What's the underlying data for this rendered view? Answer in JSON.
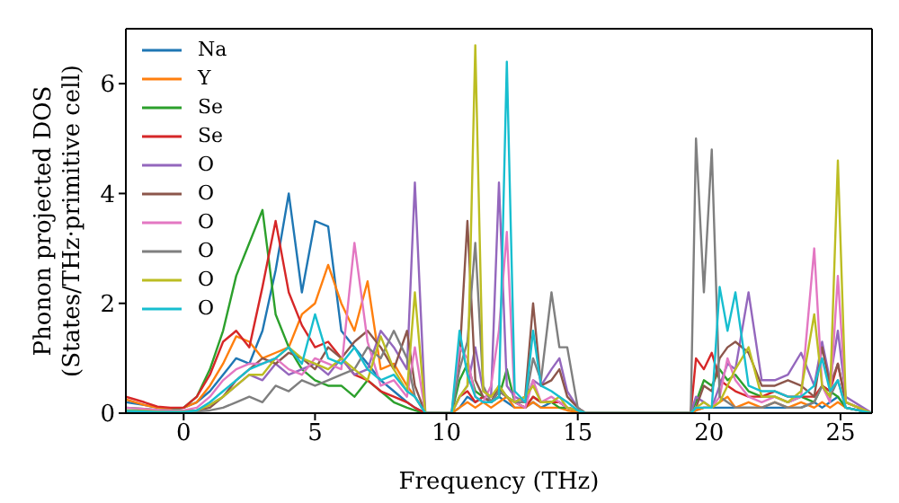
{
  "chart_data": {
    "type": "line",
    "xlabel": "Frequency (THz)",
    "ylabel": "Phonon projected DOS\n(States/THz·primitive cell)",
    "xlim": [
      -2.2,
      26.2
    ],
    "ylim": [
      0,
      7
    ],
    "xticks": [
      0,
      5,
      10,
      15,
      20,
      25
    ],
    "yticks": [
      0,
      2,
      4,
      6
    ],
    "grid": false,
    "legend": "top left",
    "marker": "none",
    "line_style": "solid",
    "x": [
      -2.2,
      -1.5,
      -1,
      -0.5,
      0,
      0.5,
      1,
      1.5,
      2,
      2.5,
      3,
      3.5,
      4,
      4.5,
      5,
      5.5,
      6,
      6.5,
      7,
      7.5,
      8,
      8.5,
      8.8,
      9.2,
      10.2,
      10.5,
      10.8,
      11.1,
      11.4,
      11.7,
      12,
      12.3,
      12.6,
      13,
      13.3,
      13.6,
      14,
      14.3,
      14.6,
      15,
      15.3,
      19.3,
      19.5,
      19.8,
      20.1,
      20.4,
      20.7,
      21,
      21.5,
      22,
      22.5,
      23,
      23.5,
      24,
      24.3,
      24.6,
      24.9,
      25.2,
      26.2
    ],
    "series": [
      {
        "name": "Na",
        "color": "#1f77b4",
        "values": [
          0.2,
          0.15,
          0.1,
          0.08,
          0.1,
          0.2,
          0.4,
          0.7,
          1.0,
          0.9,
          1.5,
          2.6,
          4.0,
          2.2,
          3.5,
          3.4,
          1.5,
          1.2,
          0.9,
          0.6,
          0.4,
          0.2,
          0.1,
          0,
          0,
          0.1,
          0.3,
          0.2,
          0.3,
          0.2,
          0.3,
          0.2,
          0.1,
          0.1,
          0.2,
          0.1,
          0.2,
          0.2,
          0.1,
          0.05,
          0,
          0,
          0.05,
          0.1,
          0.1,
          0.1,
          0.1,
          0.1,
          0.1,
          0.1,
          0.1,
          0.1,
          0.1,
          0.2,
          0.1,
          0.2,
          0.3,
          0.1,
          0
        ]
      },
      {
        "name": "Y",
        "color": "#ff7f0e",
        "values": [
          0.25,
          0.15,
          0.1,
          0.08,
          0.1,
          0.2,
          0.5,
          0.9,
          1.4,
          1.3,
          1.0,
          1.1,
          1.2,
          1.8,
          2.0,
          2.7,
          2.0,
          1.5,
          2.4,
          0.8,
          0.9,
          0.5,
          0.3,
          0,
          0,
          0.1,
          0.2,
          0.1,
          0.2,
          0.1,
          0.2,
          0.3,
          0.1,
          0.1,
          0.2,
          0.1,
          0.1,
          0.1,
          0.05,
          0.02,
          0,
          0,
          0.05,
          0.1,
          0.1,
          0.2,
          0.3,
          0.1,
          0.2,
          0.1,
          0.2,
          0.1,
          0.2,
          0.1,
          0.2,
          0.1,
          0.2,
          0.1,
          0
        ]
      },
      {
        "name": "Se",
        "color": "#2ca02c",
        "values": [
          0.1,
          0.08,
          0.06,
          0.05,
          0.1,
          0.3,
          0.8,
          1.5,
          2.5,
          3.1,
          3.7,
          1.8,
          1.2,
          0.8,
          0.6,
          0.5,
          0.5,
          0.3,
          0.6,
          0.4,
          0.2,
          0.1,
          0.05,
          0,
          0,
          0.6,
          0.9,
          0.4,
          0.3,
          0.2,
          0.3,
          0.8,
          0.2,
          0.1,
          0.3,
          0.2,
          0.2,
          0.1,
          0.1,
          0.05,
          0,
          0,
          0.2,
          0.6,
          0.5,
          0.8,
          0.6,
          0.7,
          0.4,
          0.3,
          0.3,
          0.2,
          0.3,
          0.2,
          0.5,
          0.4,
          0.3,
          0.1,
          0
        ]
      },
      {
        "name": "Se",
        "color": "#d62728",
        "values": [
          0.3,
          0.2,
          0.12,
          0.1,
          0.1,
          0.3,
          0.7,
          1.3,
          1.5,
          1.2,
          2.3,
          3.5,
          2.2,
          1.6,
          1.2,
          1.3,
          1.0,
          0.7,
          0.6,
          0.4,
          0.3,
          0.2,
          0.1,
          0,
          0,
          0.3,
          0.4,
          0.2,
          0.3,
          0.2,
          0.4,
          0.3,
          0.2,
          0.1,
          0.3,
          0.2,
          0.2,
          0.2,
          0.1,
          0.05,
          0,
          0,
          1.0,
          0.8,
          1.1,
          0.6,
          0.5,
          0.4,
          0.3,
          0.3,
          0.4,
          0.3,
          0.3,
          0.3,
          0.5,
          0.4,
          0.9,
          0.2,
          0
        ]
      },
      {
        "name": "O",
        "color": "#9467bd",
        "values": [
          null,
          null,
          null,
          null,
          0.03,
          0.05,
          0.15,
          0.3,
          0.5,
          0.7,
          0.6,
          0.9,
          0.7,
          0.8,
          0.9,
          0.7,
          1.0,
          0.7,
          0.8,
          1.5,
          1.2,
          0.8,
          4.2,
          0,
          0,
          0.3,
          0.5,
          1.2,
          0.4,
          0.3,
          4.2,
          0.5,
          0.3,
          0.2,
          0.6,
          0.5,
          0.8,
          1.0,
          0.4,
          0.1,
          0,
          0,
          0.3,
          0.2,
          0.1,
          0.5,
          0.9,
          0.8,
          2.2,
          0.6,
          0.6,
          0.7,
          1.1,
          0.5,
          1.3,
          0.6,
          1.5,
          0.3,
          0
        ]
      },
      {
        "name": "O",
        "color": "#8c564b",
        "values": [
          0.05,
          0.04,
          0.03,
          0.02,
          0.03,
          0.05,
          0.1,
          0.3,
          0.6,
          0.8,
          1.0,
          0.9,
          1.1,
          1.0,
          0.8,
          1.2,
          1.0,
          1.3,
          1.5,
          1.2,
          0.8,
          1.5,
          0.5,
          0,
          0,
          1.0,
          3.5,
          0.6,
          0.3,
          0.2,
          0.5,
          0.3,
          0.2,
          0.3,
          2.0,
          0.5,
          0.6,
          0.8,
          0.3,
          0.1,
          0,
          0,
          0.1,
          0.5,
          0.4,
          1.0,
          1.2,
          1.3,
          1.1,
          0.5,
          0.5,
          0.6,
          0.5,
          0.3,
          1.2,
          0.5,
          0.9,
          0.2,
          0
        ]
      },
      {
        "name": "O",
        "color": "#e377c2",
        "values": [
          0.1,
          0.08,
          0.06,
          0.05,
          0.05,
          0.1,
          0.3,
          0.6,
          0.8,
          0.9,
          0.9,
          1.0,
          0.8,
          0.7,
          1.0,
          0.9,
          0.8,
          3.1,
          1.3,
          0.5,
          0.6,
          0.3,
          1.2,
          0,
          0,
          1.2,
          1.0,
          0.3,
          0.2,
          0.5,
          1.5,
          3.3,
          0.2,
          0.1,
          0.6,
          0.2,
          0.3,
          0.2,
          0.1,
          0.05,
          0,
          0,
          0.1,
          0.1,
          0.1,
          0.3,
          1.0,
          0.6,
          0.3,
          0.2,
          0.3,
          0.2,
          0.3,
          3.0,
          0.5,
          0.2,
          2.5,
          0.2,
          0
        ]
      },
      {
        "name": "O",
        "color": "#7f7f7f",
        "values": [
          0.03,
          0.02,
          0.02,
          0.02,
          0.02,
          0.03,
          0.05,
          0.1,
          0.2,
          0.3,
          0.2,
          0.5,
          0.4,
          0.6,
          0.5,
          0.6,
          0.7,
          0.8,
          1.2,
          1.0,
          1.5,
          1.0,
          0.3,
          0,
          0,
          0.8,
          1.3,
          3.1,
          0.5,
          0.2,
          0.4,
          0.3,
          0.2,
          0.2,
          1.0,
          0.6,
          2.2,
          1.2,
          1.2,
          0.1,
          0,
          0,
          5.0,
          2.2,
          4.8,
          0.3,
          0.2,
          0.1,
          0.1,
          0.1,
          0.2,
          0.1,
          0.1,
          0.2,
          0.5,
          0.3,
          0.6,
          0.1,
          0
        ]
      },
      {
        "name": "O",
        "color": "#bcbd22",
        "values": [
          0.05,
          0.04,
          0.03,
          0.02,
          0.03,
          0.05,
          0.15,
          0.3,
          0.5,
          0.7,
          0.7,
          1.0,
          1.2,
          1.0,
          0.9,
          0.8,
          1.0,
          0.8,
          0.6,
          1.4,
          0.8,
          0.4,
          2.2,
          0,
          0,
          0.3,
          0.5,
          6.7,
          0.4,
          0.3,
          0.5,
          0.3,
          0.2,
          0.3,
          0.5,
          0.2,
          0.2,
          0.3,
          0.1,
          0.05,
          0,
          0,
          0.1,
          0.2,
          0.1,
          0.2,
          0.5,
          0.8,
          1.2,
          0.3,
          0.3,
          0.2,
          0.4,
          1.8,
          0.5,
          0.3,
          4.6,
          0.2,
          0
        ]
      },
      {
        "name": "O",
        "color": "#17becf",
        "values": [
          0.04,
          0.03,
          0.02,
          0.02,
          0.02,
          0.05,
          0.2,
          0.4,
          0.6,
          0.8,
          0.9,
          1.0,
          1.2,
          0.9,
          1.8,
          1.0,
          0.9,
          1.2,
          0.8,
          0.6,
          0.7,
          0.4,
          0.3,
          0,
          0,
          1.5,
          0.7,
          0.3,
          0.2,
          0.2,
          0.3,
          6.4,
          0.4,
          0.2,
          1.5,
          0.5,
          0.4,
          0.3,
          0.2,
          0.05,
          0,
          0,
          0.1,
          0.1,
          0.1,
          2.3,
          1.5,
          2.2,
          0.5,
          0.4,
          0.4,
          0.3,
          0.3,
          0.5,
          1.0,
          0.4,
          0.6,
          0.1,
          0
        ]
      }
    ]
  }
}
